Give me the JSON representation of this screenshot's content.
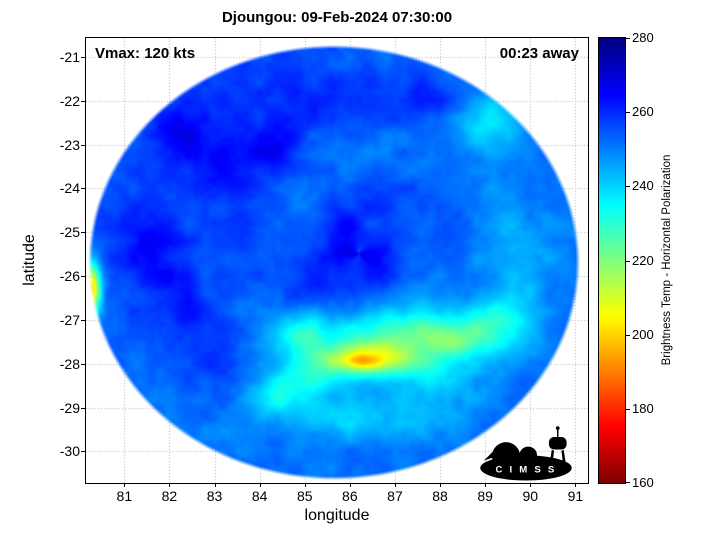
{
  "chart_data": {
    "type": "heatmap",
    "title": "Djoungou: 09-Feb-2024 07:30:00",
    "annotations": {
      "vmax": "Vmax: 120 kts",
      "time_away": "00:23 away"
    },
    "xlabel": "longitude",
    "ylabel": "latitude",
    "xlim": [
      80.15,
      91.28
    ],
    "ylim": [
      -30.72,
      -20.57
    ],
    "xticks": [
      81,
      82,
      83,
      84,
      85,
      86,
      87,
      88,
      89,
      90,
      91
    ],
    "yticks": [
      -21,
      -22,
      -23,
      -24,
      -25,
      -26,
      -27,
      -28,
      -29,
      -30
    ],
    "grid": true,
    "grid_color": "#b0b0b0",
    "colorbar": {
      "label": "Brightness Temp - Horizontal Polarization",
      "min": 160,
      "max": 280,
      "ticks": [
        160,
        180,
        200,
        220,
        240,
        260,
        280
      ],
      "colormap": "jet_reversed"
    },
    "swath": {
      "center_lon": 85.65,
      "center_lat": -25.69,
      "radius_lon": 5.45,
      "radius_lat": 4.96
    },
    "base_temp": 252,
    "features": [
      {
        "lon": 84.5,
        "lat": -21.8,
        "sx": 2.2,
        "sy": 1.0,
        "amp": 7
      },
      {
        "lon": 87.6,
        "lat": -21.9,
        "sx": 0.9,
        "sy": 0.6,
        "amp": 7
      },
      {
        "lon": 83.0,
        "lat": -23.3,
        "sx": 0.9,
        "sy": 0.8,
        "amp": 10
      },
      {
        "lon": 82.2,
        "lat": -22.6,
        "sx": 0.6,
        "sy": 0.5,
        "amp": 8
      },
      {
        "lon": 84.3,
        "lat": -23.0,
        "sx": 0.6,
        "sy": 0.5,
        "amp": 9
      },
      {
        "lon": 81.6,
        "lat": -25.4,
        "sx": 0.7,
        "sy": 1.1,
        "amp": 9
      },
      {
        "lon": 82.4,
        "lat": -26.6,
        "sx": 0.6,
        "sy": 0.8,
        "amp": 7
      },
      {
        "lon": 83.3,
        "lat": -27.8,
        "sx": 0.8,
        "sy": 0.9,
        "amp": 6
      },
      {
        "lon": 82.0,
        "lat": -24.5,
        "sx": 3.5,
        "sy": 3.0,
        "amp": 4
      },
      {
        "lon": 86.3,
        "lat": -25.4,
        "sx": 1.1,
        "sy": 0.9,
        "amp": 11
      },
      {
        "lon": 85.3,
        "lat": -26.0,
        "sx": 0.7,
        "sy": 0.6,
        "amp": 7
      },
      {
        "lon": 89.1,
        "lat": -22.5,
        "sx": 0.8,
        "sy": 0.7,
        "amp": -14
      },
      {
        "lon": 89.6,
        "lat": -25.6,
        "sx": 1.0,
        "sy": 1.2,
        "amp": -8
      },
      {
        "lon": 86.8,
        "lat": -27.4,
        "sx": 2.2,
        "sy": 0.8,
        "amp": -20
      },
      {
        "lon": 86.4,
        "lat": -27.9,
        "sx": 1.1,
        "sy": 0.38,
        "amp": -32
      },
      {
        "lon": 86.25,
        "lat": -27.95,
        "sx": 0.4,
        "sy": 0.16,
        "amp": -14
      },
      {
        "lon": 88.3,
        "lat": -27.4,
        "sx": 0.9,
        "sy": 0.45,
        "amp": -20
      },
      {
        "lon": 89.4,
        "lat": -27.0,
        "sx": 0.7,
        "sy": 0.5,
        "amp": -14
      },
      {
        "lon": 84.9,
        "lat": -27.3,
        "sx": 0.5,
        "sy": 0.4,
        "amp": -16
      },
      {
        "lon": 86.0,
        "lat": -29.2,
        "sx": 2.0,
        "sy": 0.55,
        "amp": -13
      },
      {
        "lon": 84.3,
        "lat": -28.7,
        "sx": 0.8,
        "sy": 0.45,
        "amp": -12
      },
      {
        "lon": 85.0,
        "lat": -28.3,
        "sx": 0.8,
        "sy": 0.5,
        "amp": -12
      },
      {
        "lon": 88.0,
        "lat": -28.4,
        "sx": 0.9,
        "sy": 0.5,
        "amp": -10
      },
      {
        "lon": 80.28,
        "lat": -26.3,
        "sx": 0.2,
        "sy": 0.6,
        "amp": -55
      }
    ],
    "spiral": {
      "lon": 86.2,
      "lat": -25.5,
      "arms": 2,
      "k": 2.6,
      "amp": 5,
      "decay": 2.2
    },
    "noise": {
      "scale": 2.5,
      "amp": 4.5
    }
  },
  "logo": {
    "text": "C I M S S"
  }
}
